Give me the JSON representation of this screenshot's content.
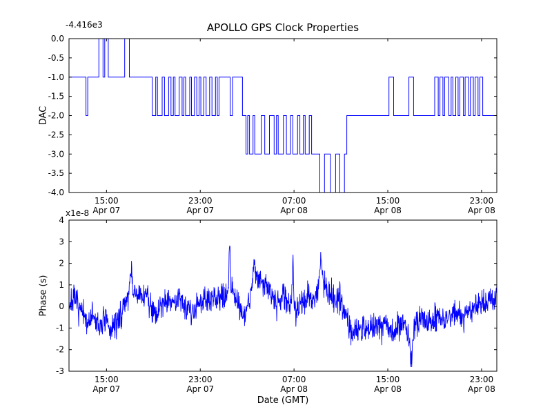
{
  "figure": {
    "title": "APOLLO GPS Clock Properties",
    "xlabel": "Date (GMT)",
    "line_color": "#0000ff",
    "axis_color": "#000000",
    "background": "#ffffff"
  },
  "chart_data": [
    {
      "type": "line",
      "subtype": "step",
      "title": "APOLLO GPS Clock Properties",
      "ylabel": "DAC",
      "offset_text": "-4.416e3",
      "axis_offset": -4416,
      "grid": false,
      "legend": "none",
      "xlim": [
        11.8,
        48.3
      ],
      "ylim": [
        -4.0,
        0.0
      ],
      "ytick_values": [
        0.0,
        -0.5,
        -1.0,
        -1.5,
        -2.0,
        -2.5,
        -3.0,
        -3.5,
        -4.0
      ],
      "ytick_labels": [
        "0.0",
        "-0.5",
        "-1.0",
        "-1.5",
        "-2.0",
        "-2.5",
        "-3.0",
        "-3.5",
        "-4.0"
      ],
      "xtick_values": [
        15,
        23,
        31,
        39,
        47
      ],
      "xtick_time_labels": [
        "15:00",
        "23:00",
        "07:00",
        "15:00",
        "23:00"
      ],
      "xtick_date_labels": [
        "Apr 07",
        "Apr 07",
        "Apr 08",
        "Apr 08",
        "Apr 08"
      ],
      "steps": [
        [
          11.8,
          -1
        ],
        [
          13.25,
          -2
        ],
        [
          13.4,
          -1
        ],
        [
          14.35,
          0
        ],
        [
          14.7,
          -1
        ],
        [
          14.85,
          0
        ],
        [
          15.15,
          -1
        ],
        [
          16.55,
          0
        ],
        [
          16.95,
          -1
        ],
        [
          18.9,
          -2
        ],
        [
          19.2,
          -1
        ],
        [
          19.35,
          -2
        ],
        [
          19.75,
          -1
        ],
        [
          19.95,
          -2
        ],
        [
          20.3,
          -1
        ],
        [
          20.5,
          -2
        ],
        [
          20.7,
          -1
        ],
        [
          20.85,
          -2
        ],
        [
          21.2,
          -1
        ],
        [
          21.45,
          -2
        ],
        [
          21.6,
          -1
        ],
        [
          21.75,
          -2
        ],
        [
          22.1,
          -1
        ],
        [
          22.25,
          -2
        ],
        [
          22.5,
          -1
        ],
        [
          22.7,
          -2
        ],
        [
          22.9,
          -1
        ],
        [
          23.05,
          -2
        ],
        [
          23.3,
          -1
        ],
        [
          23.5,
          -2
        ],
        [
          23.8,
          -1
        ],
        [
          24.0,
          -2
        ],
        [
          24.3,
          -1
        ],
        [
          24.45,
          -2
        ],
        [
          24.6,
          -1
        ],
        [
          25.55,
          -2
        ],
        [
          25.75,
          -1
        ],
        [
          26.6,
          -2
        ],
        [
          26.9,
          -3
        ],
        [
          27.05,
          -2
        ],
        [
          27.2,
          -3
        ],
        [
          27.5,
          -2
        ],
        [
          27.65,
          -3
        ],
        [
          28.2,
          -2
        ],
        [
          28.5,
          -3
        ],
        [
          28.9,
          -2
        ],
        [
          29.3,
          -3
        ],
        [
          29.5,
          -2
        ],
        [
          29.65,
          -3
        ],
        [
          30.1,
          -2
        ],
        [
          30.35,
          -3
        ],
        [
          30.7,
          -2
        ],
        [
          30.9,
          -3
        ],
        [
          31.3,
          -2
        ],
        [
          31.5,
          -3
        ],
        [
          31.8,
          -2
        ],
        [
          31.95,
          -3
        ],
        [
          32.3,
          -2
        ],
        [
          32.5,
          -3
        ],
        [
          33.2,
          -4
        ],
        [
          33.6,
          -3
        ],
        [
          34.1,
          -4
        ],
        [
          34.55,
          -3
        ],
        [
          34.9,
          -4
        ],
        [
          35.3,
          -3
        ],
        [
          35.5,
          -2
        ],
        [
          39.1,
          -1
        ],
        [
          39.5,
          -2
        ],
        [
          40.8,
          -1
        ],
        [
          41.2,
          -2
        ],
        [
          43.0,
          -1
        ],
        [
          43.3,
          -2
        ],
        [
          43.45,
          -1
        ],
        [
          43.7,
          -2
        ],
        [
          43.85,
          -1
        ],
        [
          44.2,
          -2
        ],
        [
          44.4,
          -1
        ],
        [
          44.55,
          -2
        ],
        [
          44.8,
          -1
        ],
        [
          45.0,
          -2
        ],
        [
          45.15,
          -1
        ],
        [
          45.45,
          -2
        ],
        [
          45.6,
          -1
        ],
        [
          45.9,
          -2
        ],
        [
          46.05,
          -1
        ],
        [
          46.3,
          -2
        ],
        [
          46.45,
          -1
        ],
        [
          46.7,
          -2
        ],
        [
          46.85,
          -1
        ],
        [
          47.1,
          -2
        ],
        [
          48.3,
          -2
        ]
      ]
    },
    {
      "type": "line",
      "subtype": "noisy",
      "ylabel": "Phase (s)",
      "xlabel": "Date (GMT)",
      "offset_text": "x1e-8",
      "unit_scale": 1e-08,
      "grid": false,
      "legend": "none",
      "xlim": [
        11.8,
        48.3
      ],
      "ylim": [
        -3,
        4
      ],
      "ytick_values": [
        -3,
        -2,
        -1,
        0,
        1,
        2,
        3,
        4
      ],
      "ytick_labels": [
        "-3",
        "-2",
        "-1",
        "0",
        "1",
        "2",
        "3",
        "4"
      ],
      "xtick_values": [
        15,
        23,
        31,
        39,
        47
      ],
      "xtick_time_labels": [
        "15:00",
        "23:00",
        "07:00",
        "15:00",
        "23:00"
      ],
      "xtick_date_labels": [
        "Apr 07",
        "Apr 07",
        "Apr 08",
        "Apr 08",
        "Apr 08"
      ],
      "baseline": [
        [
          11.8,
          0.1
        ],
        [
          12.3,
          0.3
        ],
        [
          12.8,
          -0.2
        ],
        [
          13.3,
          -0.8
        ],
        [
          13.8,
          -0.4
        ],
        [
          14.3,
          -1.0
        ],
        [
          14.8,
          -0.6
        ],
        [
          15.3,
          -1.1
        ],
        [
          15.8,
          -0.8
        ],
        [
          16.3,
          -0.3
        ],
        [
          16.8,
          0.5
        ],
        [
          17.3,
          0.7
        ],
        [
          17.8,
          0.4
        ],
        [
          18.3,
          0.6
        ],
        [
          18.8,
          0.1
        ],
        [
          19.3,
          -0.4
        ],
        [
          19.8,
          0.2
        ],
        [
          20.3,
          0.4
        ],
        [
          20.8,
          0.1
        ],
        [
          21.3,
          0.5
        ],
        [
          21.8,
          0.0
        ],
        [
          22.3,
          -0.3
        ],
        [
          22.8,
          0.2
        ],
        [
          23.3,
          0.4
        ],
        [
          23.8,
          0.2
        ],
        [
          24.3,
          0.4
        ],
        [
          24.8,
          0.3
        ],
        [
          25.3,
          0.6
        ],
        [
          25.7,
          0.9
        ],
        [
          26.2,
          0.2
        ],
        [
          26.7,
          -0.5
        ],
        [
          27.2,
          0.4
        ],
        [
          27.7,
          1.3
        ],
        [
          28.2,
          1.1
        ],
        [
          28.7,
          0.9
        ],
        [
          29.2,
          0.5
        ],
        [
          29.7,
          0.2
        ],
        [
          30.2,
          0.5
        ],
        [
          30.7,
          0.1
        ],
        [
          31.2,
          -0.2
        ],
        [
          31.7,
          0.3
        ],
        [
          32.2,
          0.4
        ],
        [
          32.7,
          0.2
        ],
        [
          33.1,
          0.9
        ],
        [
          33.5,
          1.3
        ],
        [
          33.9,
          0.6
        ],
        [
          34.4,
          0.4
        ],
        [
          34.9,
          0.5
        ],
        [
          35.4,
          -0.5
        ],
        [
          35.9,
          -1.0
        ],
        [
          36.4,
          -1.2
        ],
        [
          36.9,
          -0.9
        ],
        [
          37.4,
          -1.1
        ],
        [
          37.9,
          -0.8
        ],
        [
          38.4,
          -1.0
        ],
        [
          38.9,
          -0.7
        ],
        [
          39.4,
          -1.2
        ],
        [
          39.9,
          -0.9
        ],
        [
          40.4,
          -0.7
        ],
        [
          40.9,
          -1.5
        ],
        [
          41.4,
          -0.8
        ],
        [
          41.9,
          -0.5
        ],
        [
          42.4,
          -0.8
        ],
        [
          42.9,
          -0.6
        ],
        [
          43.4,
          -0.5
        ],
        [
          43.9,
          -0.7
        ],
        [
          44.4,
          -0.4
        ],
        [
          44.9,
          -0.3
        ],
        [
          45.4,
          -0.6
        ],
        [
          45.9,
          -0.2
        ],
        [
          46.4,
          0.0
        ],
        [
          46.9,
          0.3
        ],
        [
          47.4,
          0.2
        ],
        [
          47.9,
          0.4
        ],
        [
          48.3,
          0.5
        ]
      ],
      "spikes": [
        {
          "t": 25.5,
          "peak": 3.1,
          "w": 0.08
        },
        {
          "t": 27.6,
          "peak": 2.3,
          "w": 0.1
        },
        {
          "t": 30.9,
          "peak": 1.9,
          "w": 0.08
        },
        {
          "t": 33.3,
          "peak": 2.2,
          "w": 0.12
        },
        {
          "t": 41.0,
          "peak": -2.6,
          "w": 0.1
        },
        {
          "t": 17.1,
          "peak": 1.6,
          "w": 0.1
        }
      ],
      "noise_sigma": 0.32,
      "n_points": 1500,
      "seed": 7
    }
  ]
}
